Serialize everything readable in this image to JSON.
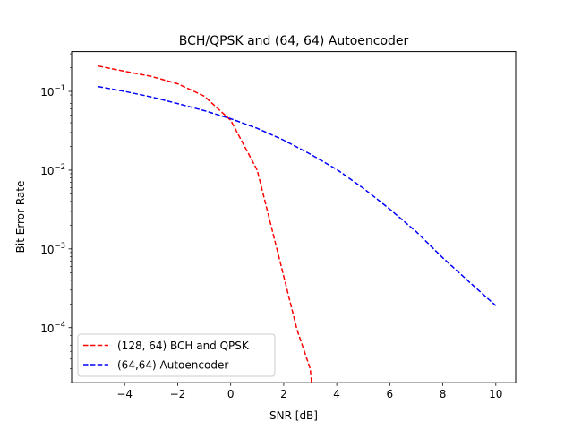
{
  "chart_data": {
    "type": "line",
    "title": "BCH/QPSK and (64, 64) Autoencoder",
    "xlabel": "SNR [dB]",
    "ylabel": "Bit Error Rate",
    "xlim": [
      -6.0,
      10.75
    ],
    "ylim": [
      2e-05,
      0.32
    ],
    "yscale": "log",
    "x_ticks": [
      -4,
      -2,
      0,
      2,
      4,
      6,
      8,
      10
    ],
    "x_tick_labels": [
      "−4",
      "−2",
      "0",
      "2",
      "4",
      "6",
      "8",
      "10"
    ],
    "y_ticks": [
      {
        "value": 0.0001,
        "base": "10",
        "exp": "−4"
      },
      {
        "value": 0.001,
        "base": "10",
        "exp": "−3"
      },
      {
        "value": 0.01,
        "base": "10",
        "exp": "−2"
      },
      {
        "value": 0.1,
        "base": "10",
        "exp": "−1"
      }
    ],
    "grid": false,
    "legend_position": "lower-left",
    "series": [
      {
        "name": "(128, 64) BCH and QPSK",
        "color": "#ff0000",
        "style": "dashed",
        "x": [
          -5,
          -4,
          -3,
          -2,
          -1,
          0,
          1,
          2,
          2.5,
          3,
          3.05
        ],
        "y": [
          0.21,
          0.18,
          0.155,
          0.125,
          0.087,
          0.043,
          0.01,
          0.00045,
          9.5e-05,
          3e-05,
          2e-05
        ]
      },
      {
        "name": "(64,64) Autoencoder",
        "color": "#0000ff",
        "style": "dashed",
        "x": [
          -5,
          -4,
          -3,
          -2,
          -1,
          0,
          1,
          2,
          3,
          4,
          5,
          6,
          7,
          8,
          9,
          10
        ],
        "y": [
          0.115,
          0.1,
          0.085,
          0.07,
          0.057,
          0.045,
          0.034,
          0.024,
          0.016,
          0.0102,
          0.0059,
          0.0032,
          0.00165,
          0.00077,
          0.00038,
          0.00019
        ]
      }
    ]
  }
}
